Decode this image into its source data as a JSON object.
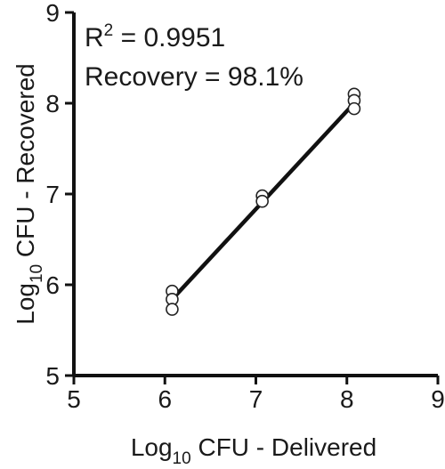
{
  "chart_data": {
    "type": "scatter",
    "xlabel": {
      "base": "Log",
      "sub": "10",
      "rest": " CFU - Delivered"
    },
    "ylabel": {
      "base": "Log",
      "sub": "10",
      "rest": " CFU - Recovered"
    },
    "xlim": [
      5,
      9
    ],
    "ylim": [
      5,
      9
    ],
    "xticks": [
      "5",
      "6",
      "7",
      "8",
      "9"
    ],
    "yticks": [
      "5",
      "6",
      "7",
      "8",
      "9"
    ],
    "grid": false,
    "points": [
      {
        "x": 6.08,
        "y": 5.93
      },
      {
        "x": 6.08,
        "y": 5.84
      },
      {
        "x": 6.08,
        "y": 5.73
      },
      {
        "x": 7.07,
        "y": 6.98
      },
      {
        "x": 7.07,
        "y": 6.92
      },
      {
        "x": 8.08,
        "y": 8.1
      },
      {
        "x": 8.08,
        "y": 8.03
      },
      {
        "x": 8.08,
        "y": 7.94
      }
    ],
    "fit_line": {
      "x": [
        6.08,
        8.08
      ],
      "y": [
        5.84,
        8.0
      ]
    },
    "annotations": {
      "r2_base": "R",
      "r2_sup": "2",
      "r2_rest": " = 0.9951",
      "recovery": "Recovery = 98.1%"
    },
    "colors": {
      "line": "#111111",
      "marker_fill": "#ffffff",
      "marker_stroke": "#222222",
      "axis": "#111111"
    }
  }
}
